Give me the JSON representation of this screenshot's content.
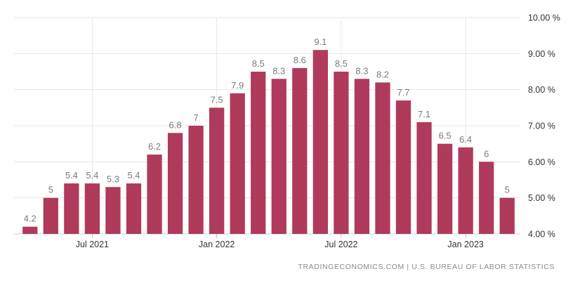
{
  "chart_data": {
    "type": "bar",
    "categories": [
      "2021-04",
      "2021-05",
      "2021-06",
      "2021-07",
      "2021-08",
      "2021-09",
      "2021-10",
      "2021-11",
      "2021-12",
      "2022-01",
      "2022-02",
      "2022-03",
      "2022-04",
      "2022-05",
      "2022-06",
      "2022-07",
      "2022-08",
      "2022-09",
      "2022-10",
      "2022-11",
      "2022-12",
      "2023-01",
      "2023-02",
      "2023-03"
    ],
    "values": [
      4.2,
      5,
      5.4,
      5.4,
      5.3,
      5.4,
      6.2,
      6.8,
      7,
      7.5,
      7.9,
      8.5,
      8.3,
      8.6,
      9.1,
      8.5,
      8.3,
      8.2,
      7.7,
      7.1,
      6.5,
      6.4,
      6,
      5
    ],
    "data_labels": [
      "4.2",
      "5",
      "5.4",
      "5.4",
      "5.3",
      "5.4",
      "6.2",
      "6.8",
      "7",
      "7.5",
      "7.9",
      "8.5",
      "8.3",
      "8.6",
      "9.1",
      "8.5",
      "8.3",
      "8.2",
      "7.7",
      "7.1",
      "6.5",
      "6.4",
      "6",
      "5"
    ],
    "ylim": [
      4,
      10
    ],
    "y_ticks": [
      4,
      5,
      6,
      7,
      8,
      9,
      10
    ],
    "y_tick_labels": [
      "4.00 %",
      "5.00 %",
      "6.00 %",
      "7.00 %",
      "8.00 %",
      "9.00 %",
      "10.00 %"
    ],
    "y_axis_side": "right",
    "x_tick_labels": [
      {
        "label": "Jul 2021",
        "category": "2021-07"
      },
      {
        "label": "Jan 2022",
        "category": "2022-01"
      },
      {
        "label": "Jul 2022",
        "category": "2022-07"
      },
      {
        "label": "Jan 2023",
        "category": "2023-01"
      }
    ],
    "grid": true,
    "bar_color": "#b03a5b",
    "title": "",
    "xlabel": "",
    "ylabel": ""
  },
  "source": "TRADINGECONOMICS.COM | U.S. BUREAU OF LABOR STATISTICS"
}
